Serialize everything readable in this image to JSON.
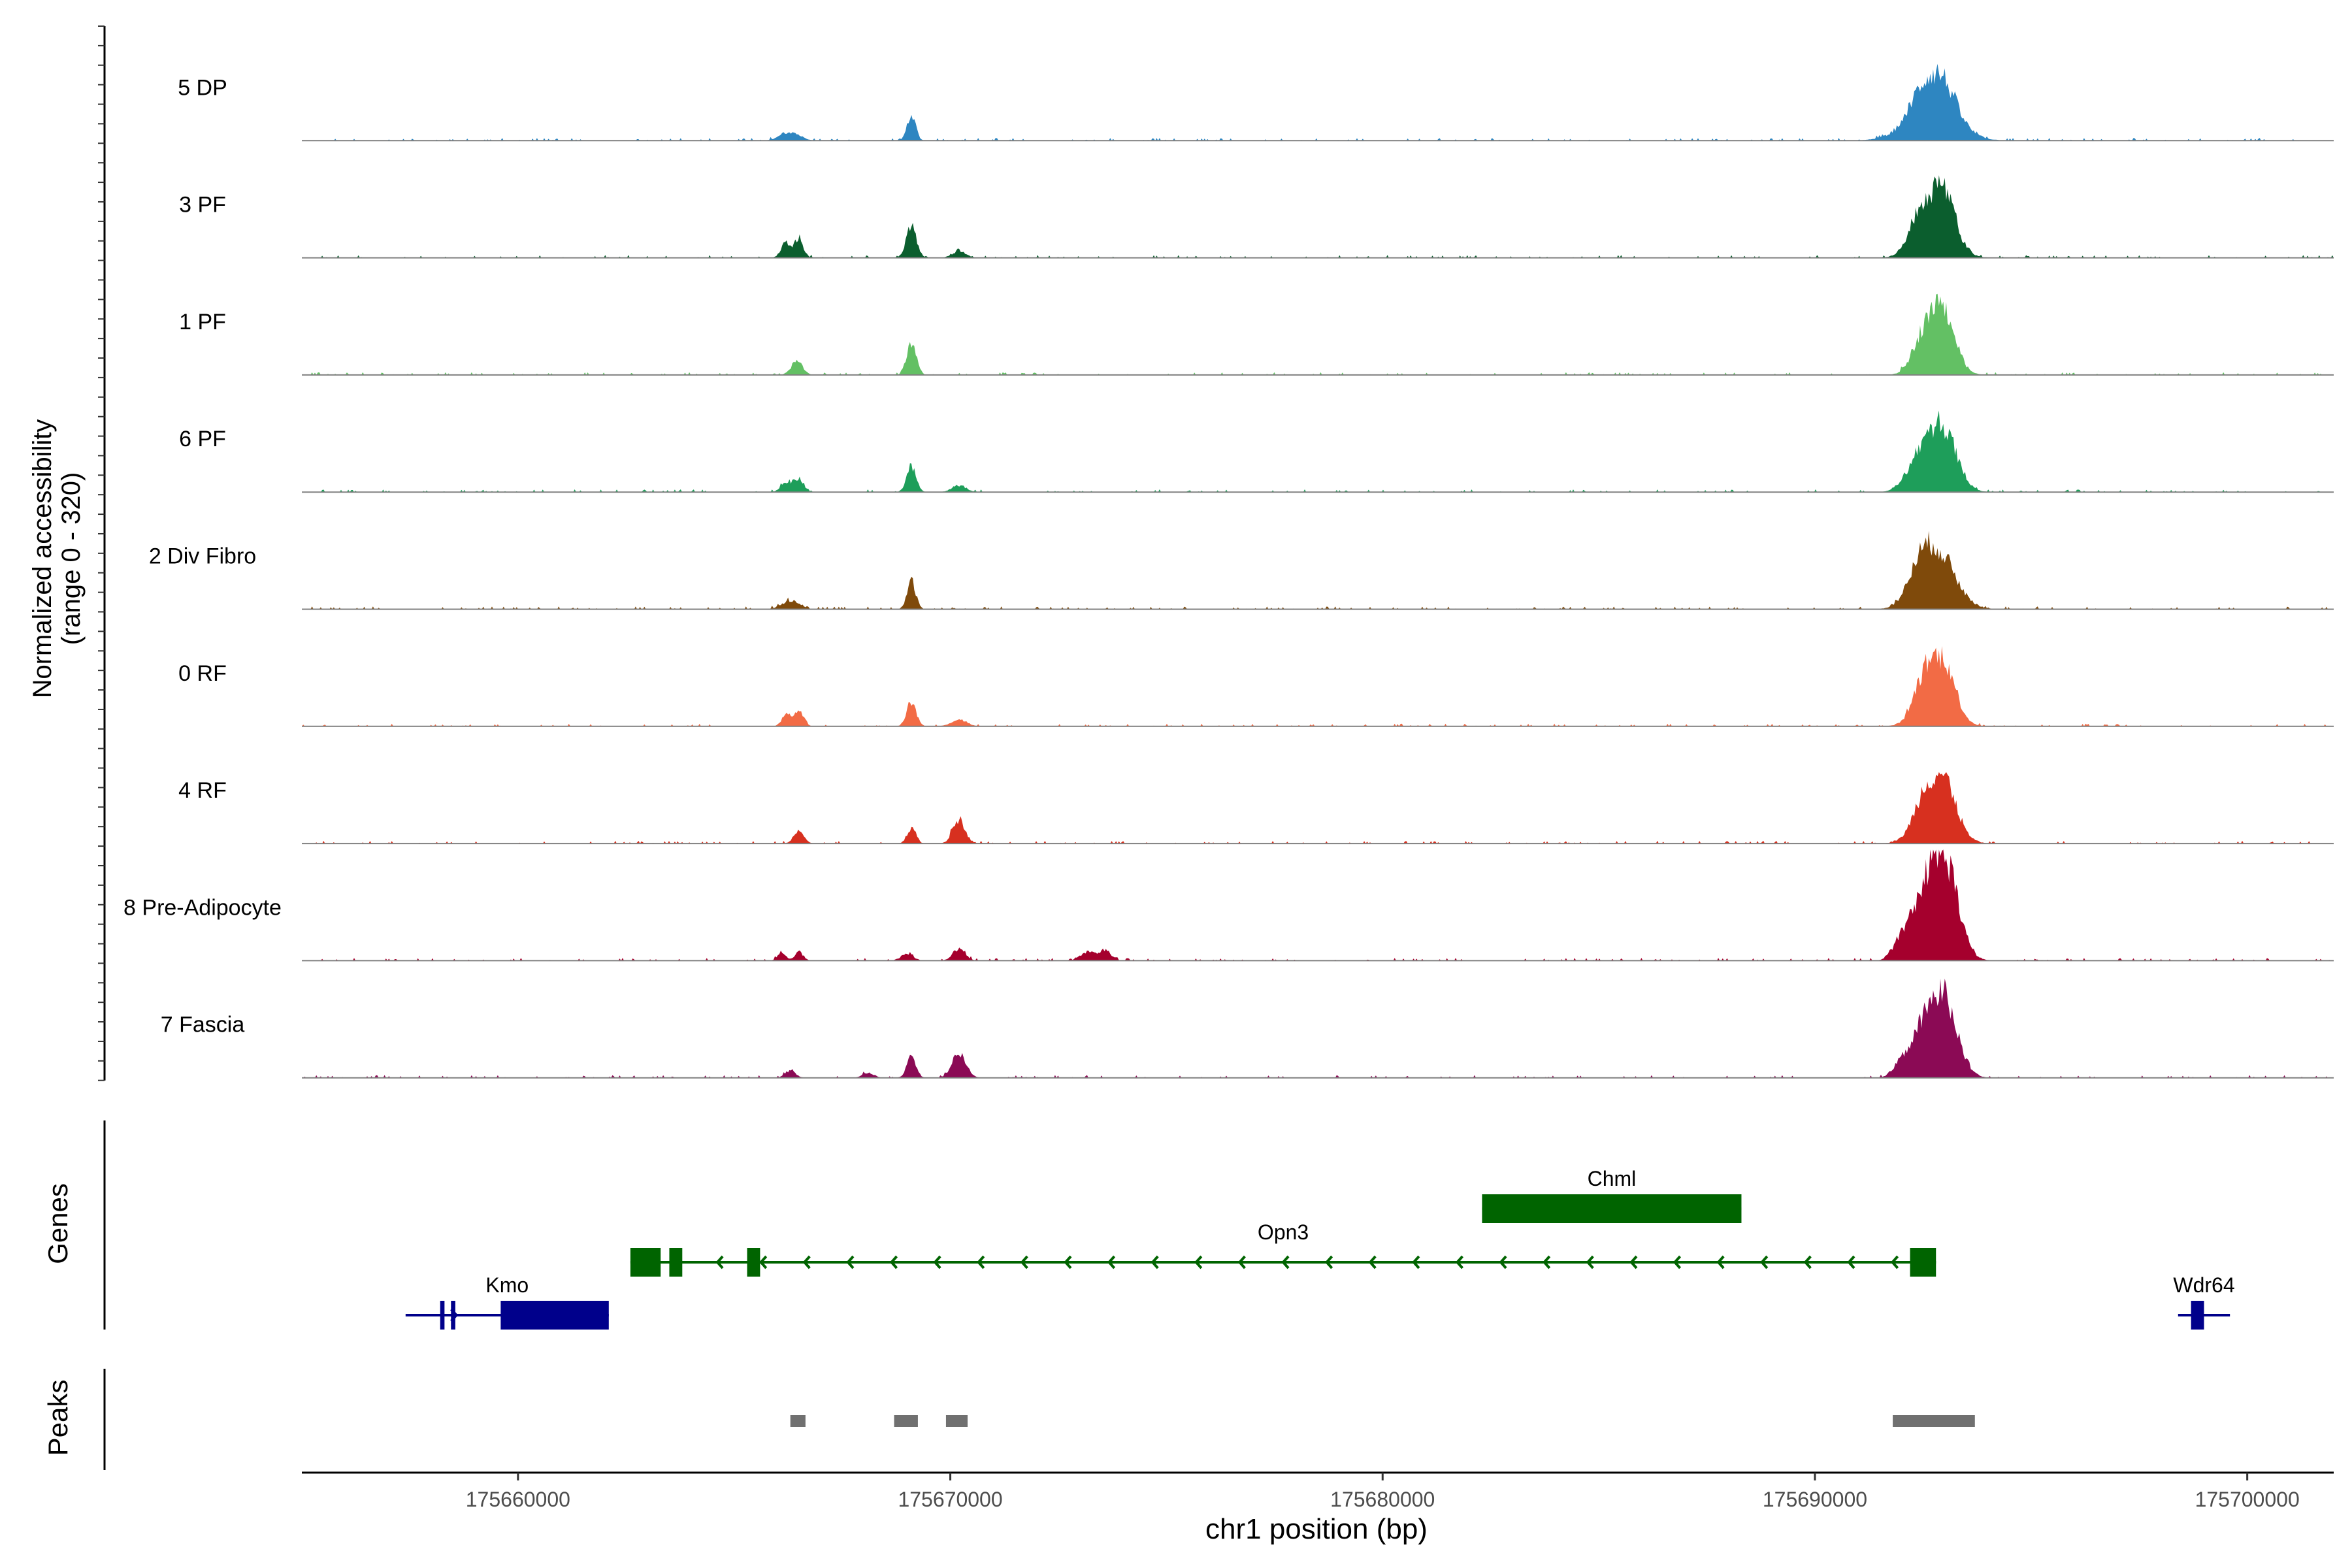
{
  "chart_data": {
    "type": "area",
    "x_range": [
      175655000,
      175702000
    ],
    "y_range": [
      0,
      320
    ],
    "ylabel_line1": "Normalized accessibility",
    "ylabel_line2": "(range 0 - 320)",
    "xlabel": "chr1 position (bp)",
    "x_ticks": [
      175660000,
      175670000,
      175680000,
      175690000,
      175700000
    ],
    "x_tick_labels": [
      "175660000",
      "175670000",
      "175680000",
      "175690000",
      "175700000"
    ],
    "tracks": [
      {
        "name": "5 DP",
        "color": "#2e86c1",
        "peaks": [
          [
            175666300,
            25,
            220
          ],
          [
            175669100,
            70,
            100
          ],
          [
            175692700,
            100,
            550
          ],
          [
            175692950,
            90,
            300
          ],
          [
            175692450,
            50,
            250
          ]
        ]
      },
      {
        "name": "3 PF",
        "color": "#0b5e2e",
        "peaks": [
          [
            175666200,
            45,
            110
          ],
          [
            175666500,
            55,
            100
          ],
          [
            175669100,
            90,
            120
          ],
          [
            175670200,
            20,
            150
          ],
          [
            175692800,
            130,
            380
          ],
          [
            175692300,
            50,
            220
          ],
          [
            175692950,
            90,
            260
          ]
        ]
      },
      {
        "name": "1 PF",
        "color": "#63c064",
        "peaks": [
          [
            175666450,
            40,
            130
          ],
          [
            175669100,
            90,
            110
          ],
          [
            175692800,
            140,
            340
          ],
          [
            175692400,
            40,
            200
          ],
          [
            175693000,
            80,
            250
          ]
        ]
      },
      {
        "name": "6 PF",
        "color": "#1e9e5a",
        "peaks": [
          [
            175666200,
            30,
            120
          ],
          [
            175666500,
            40,
            110
          ],
          [
            175669100,
            70,
            110
          ],
          [
            175670200,
            20,
            160
          ],
          [
            175692800,
            120,
            380
          ],
          [
            175692300,
            45,
            260
          ],
          [
            175693000,
            85,
            280
          ]
        ]
      },
      {
        "name": "2 Div Fibro",
        "color": "#7f4a0b",
        "peaks": [
          [
            175666300,
            25,
            200
          ],
          [
            175669100,
            80,
            100
          ],
          [
            175692800,
            170,
            420
          ],
          [
            175692400,
            50,
            250
          ]
        ]
      },
      {
        "name": "0 RF",
        "color": "#f26b45",
        "peaks": [
          [
            175666200,
            35,
            100
          ],
          [
            175666500,
            45,
            110
          ],
          [
            175669100,
            70,
            110
          ],
          [
            175670200,
            20,
            180
          ],
          [
            175692800,
            140,
            360
          ],
          [
            175692500,
            60,
            220
          ],
          [
            175693050,
            70,
            230
          ]
        ]
      },
      {
        "name": "4 RF",
        "color": "#d7301f",
        "peaks": [
          [
            175666500,
            35,
            120
          ],
          [
            175669100,
            45,
            100
          ],
          [
            175670200,
            70,
            140
          ],
          [
            175692800,
            140,
            380
          ],
          [
            175692500,
            50,
            220
          ],
          [
            175693050,
            70,
            240
          ]
        ]
      },
      {
        "name": "8 Pre-Adipocyte",
        "color": "#a5002d",
        "peaks": [
          [
            175666100,
            20,
            100
          ],
          [
            175666500,
            25,
            100
          ],
          [
            175669000,
            20,
            140
          ],
          [
            175670200,
            35,
            140
          ],
          [
            175673200,
            25,
            180
          ],
          [
            175673600,
            30,
            120
          ],
          [
            175692800,
            230,
            380
          ],
          [
            175692350,
            60,
            280
          ],
          [
            175693100,
            110,
            260
          ],
          [
            175691900,
            30,
            150
          ]
        ]
      },
      {
        "name": "7 Fascia",
        "color": "#8b0a55",
        "peaks": [
          [
            175666300,
            20,
            120
          ],
          [
            175668100,
            15,
            130
          ],
          [
            175669100,
            55,
            110
          ],
          [
            175670200,
            70,
            160
          ],
          [
            175692800,
            180,
            360
          ],
          [
            175692300,
            55,
            250
          ],
          [
            175693100,
            90,
            270
          ],
          [
            175691900,
            20,
            150
          ]
        ]
      }
    ],
    "genes_label": "Genes",
    "peaks_label": "Peaks",
    "genes": [
      {
        "name": "Chml",
        "strand": "+",
        "color": "#006400",
        "start": 175682300,
        "end": 175688300,
        "exons": [
          [
            175682300,
            175688300
          ]
        ]
      },
      {
        "name": "Opn3",
        "strand": "-",
        "color": "#006400",
        "start": 175662600,
        "end": 175692800,
        "exons": [
          [
            175662600,
            175663300
          ],
          [
            175663500,
            175663800
          ],
          [
            175665300,
            175665600
          ],
          [
            175692200,
            175692800
          ]
        ]
      },
      {
        "name": "Kmo",
        "strand": "+",
        "color": "#00008b",
        "start": 175657400,
        "end": 175662100,
        "exons": [
          [
            175658200,
            175658300
          ],
          [
            175658450,
            175658550
          ],
          [
            175659600,
            175662100
          ]
        ]
      },
      {
        "name": "Wdr64",
        "strand": "+",
        "color": "#00008b",
        "start": 175698400,
        "end": 175699600,
        "exons": [
          [
            175698700,
            175699000
          ]
        ]
      }
    ],
    "peak_regions": [
      [
        175666300,
        175666650
      ],
      [
        175668700,
        175669250
      ],
      [
        175669900,
        175670400
      ],
      [
        175691800,
        175693700
      ]
    ]
  }
}
